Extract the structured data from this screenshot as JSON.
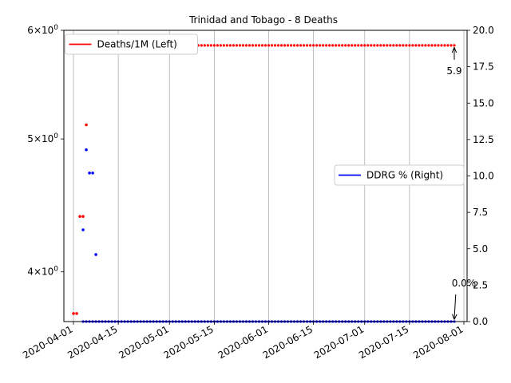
{
  "chart_data": {
    "type": "scatter",
    "title": "Trinidad and Tobago - 8 Deaths",
    "x_type": "date",
    "x_range": [
      "2020-03-29",
      "2020-08-02"
    ],
    "x_ticks": [
      "2020-04-01",
      "2020-04-15",
      "2020-05-01",
      "2020-05-15",
      "2020-06-01",
      "2020-06-15",
      "2020-07-01",
      "2020-07-15",
      "2020-08-01"
    ],
    "grid": "x",
    "left_axis": {
      "scale": "log",
      "range": [
        3.68,
        6.0
      ],
      "ticks": [
        {
          "value": 4,
          "base": "4",
          "exp": "0"
        },
        {
          "value": 5,
          "base": "5",
          "exp": "0"
        },
        {
          "value": 6,
          "base": "6",
          "exp": "0"
        }
      ],
      "tick_sep": "×10"
    },
    "right_axis": {
      "scale": "linear",
      "range": [
        0,
        20
      ],
      "ticks": [
        "0.0",
        "2.5",
        "5.0",
        "7.5",
        "10.0",
        "12.5",
        "15.0",
        "17.5",
        "20.0"
      ]
    },
    "series": [
      {
        "name": "Deaths/1M (Left)",
        "axis": "left",
        "color": "#ff0000",
        "sparse_points": [
          {
            "x": "2020-04-01",
            "y": 3.73
          },
          {
            "x": "2020-04-02",
            "y": 3.73
          },
          {
            "x": "2020-04-03",
            "y": 4.39
          },
          {
            "x": "2020-04-04",
            "y": 4.39
          },
          {
            "x": "2020-04-05",
            "y": 5.12
          }
        ],
        "constant_from": "2020-04-06",
        "constant_to": "2020-07-29",
        "constant_value": 5.85,
        "hidden_until": "2020-05-07"
      },
      {
        "name": "DDRG % (Right)",
        "axis": "right",
        "color": "#0000ff",
        "sparse_points": [
          {
            "x": "2020-04-04",
            "y": 6.3
          },
          {
            "x": "2020-04-05",
            "y": 11.8
          },
          {
            "x": "2020-04-06",
            "y": 10.2
          },
          {
            "x": "2020-04-07",
            "y": 10.2
          },
          {
            "x": "2020-04-08",
            "y": 4.6
          }
        ],
        "constant_from": "2020-04-04",
        "constant_to": "2020-07-29",
        "constant_value": 0.0,
        "line_from": "2020-04-04"
      }
    ],
    "annotations": [
      {
        "text": "5.9",
        "axis": "left",
        "x": "2020-07-29",
        "y": 5.85,
        "dx": 0,
        "dy": 34
      },
      {
        "text": "0.0%",
        "axis": "right",
        "x": "2020-07-29",
        "y": 0.0,
        "dx": 12,
        "dy": -44
      }
    ],
    "legends": [
      {
        "position": "top-left",
        "series": 0
      },
      {
        "position": "center-right",
        "series": 1
      }
    ]
  }
}
